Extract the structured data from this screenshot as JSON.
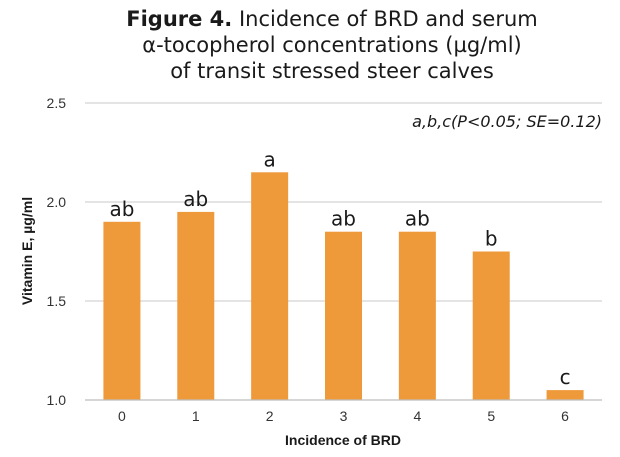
{
  "chart_data": {
    "type": "bar",
    "title_bold": "Figure 4.",
    "title_rest": " Incidence of BRD and serum",
    "title_line2": "α-tocopherol concentrations (µg/ml)",
    "title_line3": "of transit stressed steer calves",
    "annotation": "a,b,c(P<0.05; SE=0.12)",
    "xlabel": "Incidence of BRD",
    "ylabel": "Vitamin E, µg/ml",
    "categories": [
      "0",
      "1",
      "2",
      "3",
      "4",
      "5",
      "6"
    ],
    "values": [
      1.9,
      1.95,
      2.15,
      1.85,
      1.85,
      1.75,
      1.05
    ],
    "data_labels": [
      "ab",
      "ab",
      "a",
      "ab",
      "ab",
      "b",
      "c"
    ],
    "ylim": [
      1.0,
      2.5
    ],
    "yticks": [
      "1.0",
      "1.5",
      "2.0",
      "2.5"
    ],
    "grid": true,
    "bar_color": "#EE9A3A"
  }
}
